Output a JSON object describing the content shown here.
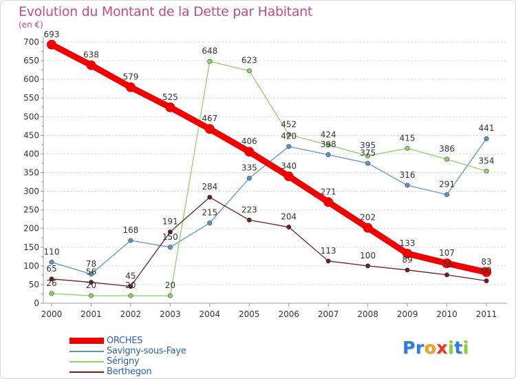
{
  "title": "Evolution du Montant de la Dette par Habitant",
  "unit_label": "(en €)",
  "brand": {
    "letters": [
      {
        "char": "P",
        "color": "#2b7fd6"
      },
      {
        "char": "r",
        "color": "#2b7fd6"
      },
      {
        "char": "o",
        "color": "#f0a21d"
      },
      {
        "char": "x",
        "color": "#e43a2b"
      },
      {
        "char": "i",
        "color": "#8fcf3a"
      },
      {
        "char": "t",
        "color": "#2b7fd6"
      },
      {
        "char": "i",
        "color": "#8fcf3a"
      }
    ]
  },
  "chart_data": {
    "type": "line",
    "title": "Evolution du Montant de la Dette par Habitant",
    "ylabel": "(en €)",
    "xlabel": "",
    "x": [
      "2000",
      "2001",
      "2002",
      "2003",
      "2004",
      "2005",
      "2006",
      "2007",
      "2008",
      "2009",
      "2010",
      "2011"
    ],
    "ylim": [
      0,
      700
    ],
    "yticks": [
      0,
      50,
      100,
      150,
      200,
      250,
      300,
      350,
      400,
      450,
      500,
      550,
      600,
      650,
      700
    ],
    "grid": "horizontal dashed",
    "legend_position": "bottom-left",
    "series": [
      {
        "name": "ORCHES",
        "color": "#ee0000",
        "emphasis": true,
        "values": [
          693,
          638,
          579,
          525,
          467,
          406,
          340,
          271,
          202,
          133,
          107,
          83
        ]
      },
      {
        "name": "Savigny-sous-Faye",
        "color": "#5b95c8",
        "emphasis": false,
        "values": [
          110,
          78,
          168,
          150,
          215,
          335,
          420,
          398,
          375,
          316,
          291,
          441
        ]
      },
      {
        "name": "Sérigny",
        "color": "#8fd26a",
        "emphasis": false,
        "values": [
          26,
          20,
          20,
          20,
          648,
          623,
          452,
          424,
          395,
          415,
          386,
          354
        ]
      },
      {
        "name": "Berthegon",
        "color": "#6b1e1e",
        "emphasis": false,
        "values": [
          65,
          56,
          45,
          191,
          284,
          223,
          204,
          113,
          100,
          89,
          76,
          60
        ]
      }
    ],
    "data_labels": [
      {
        "series": 0,
        "points": [
          "693",
          "638",
          "579",
          "525",
          "467",
          "406",
          "340",
          "271",
          "202",
          "133",
          "107",
          "83"
        ]
      },
      {
        "series": 1,
        "points": [
          "110",
          "78",
          "168",
          "150",
          "215",
          "335",
          "420",
          "398",
          "375",
          "316",
          "291",
          "441"
        ]
      },
      {
        "series": 2,
        "points": [
          "26",
          "20",
          "20",
          "20",
          "648",
          "623",
          "452",
          "424",
          "395",
          "415",
          "386",
          "354"
        ]
      },
      {
        "series": 3,
        "points": [
          "65",
          "56",
          "45",
          "191",
          "284",
          "223",
          "204",
          "113",
          "100",
          "89",
          "76",
          "60"
        ]
      }
    ]
  }
}
